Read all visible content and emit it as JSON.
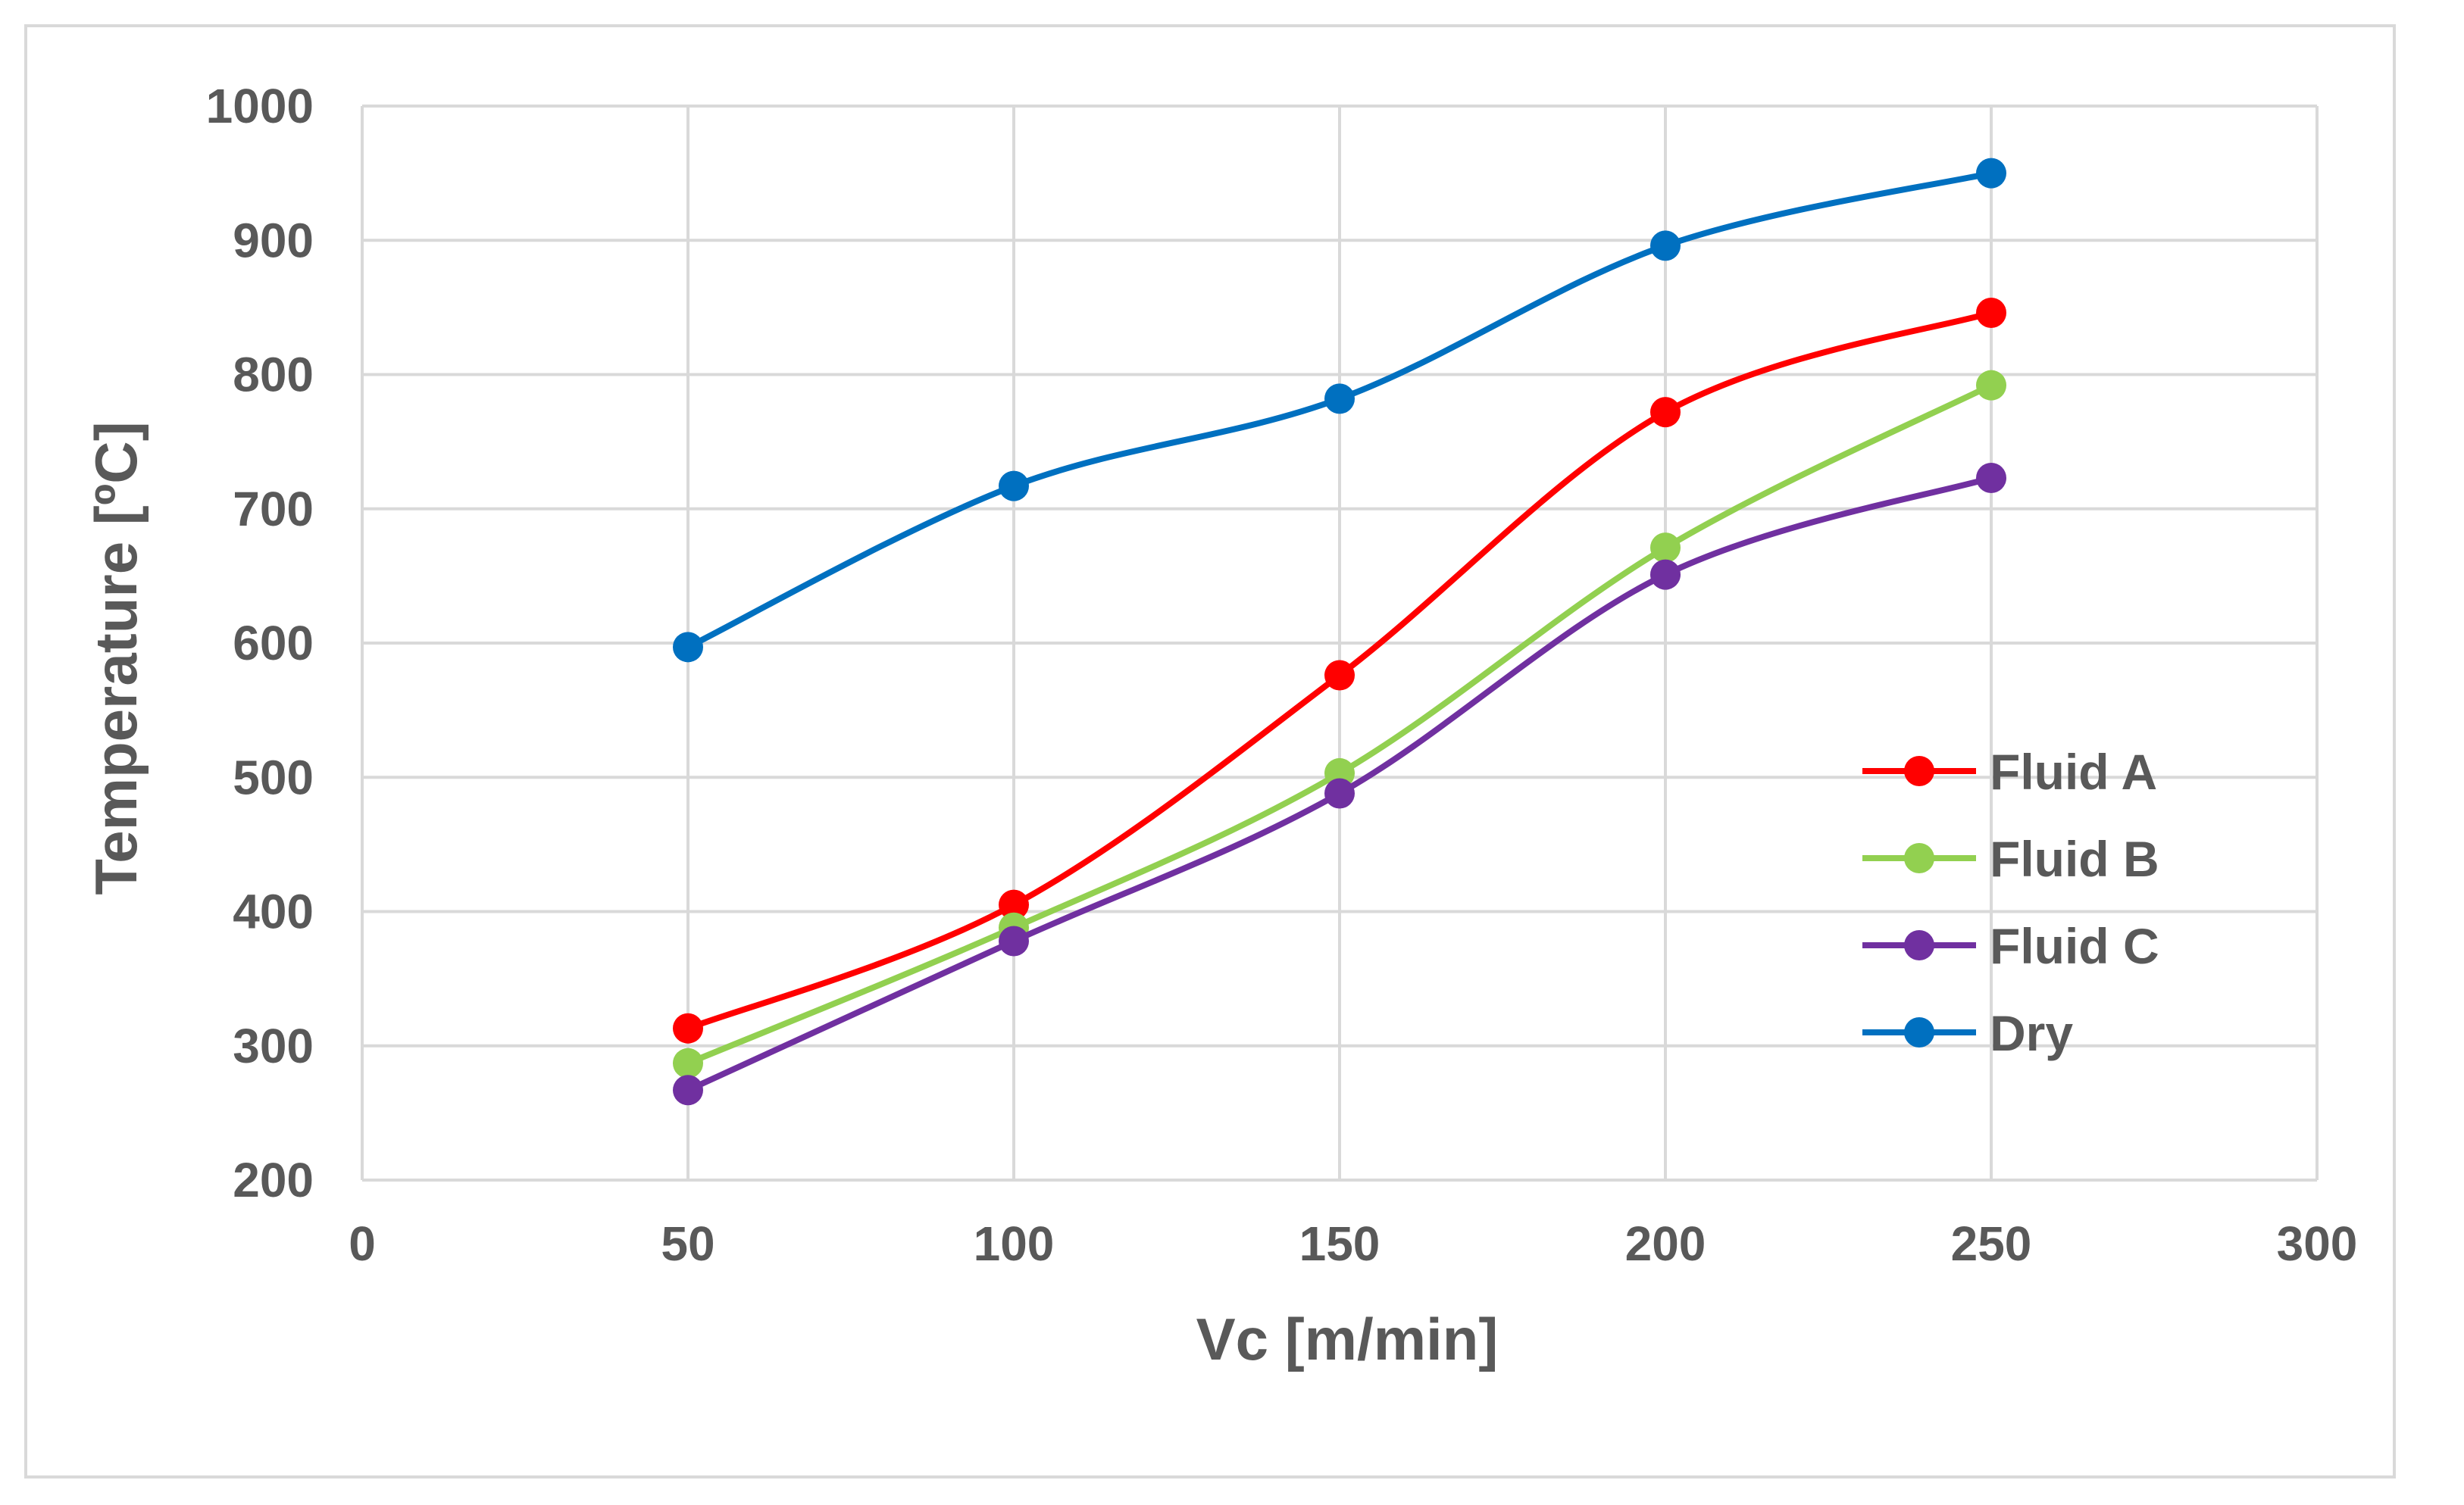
{
  "chart_data": {
    "type": "line",
    "title": "",
    "xlabel": "Vc [m/min]",
    "ylabel": "Temperature [ºC]",
    "xlim": [
      0,
      300
    ],
    "ylim": [
      200,
      1000
    ],
    "xticks": [
      0,
      50,
      100,
      150,
      200,
      250,
      300
    ],
    "yticks": [
      200,
      300,
      400,
      500,
      600,
      700,
      800,
      900,
      1000
    ],
    "grid": true,
    "smooth": true,
    "legend_position": "right-middle",
    "x": [
      50,
      100,
      150,
      200,
      250
    ],
    "series": [
      {
        "name": "Fluid A",
        "color": "#ff0000",
        "values": [
          313,
          405,
          576,
          772,
          846
        ]
      },
      {
        "name": "Fluid B",
        "color": "#92d050",
        "values": [
          287,
          388,
          503,
          671,
          792
        ]
      },
      {
        "name": "Fluid C",
        "color": "#7030a0",
        "values": [
          267,
          378,
          488,
          651,
          723
        ]
      },
      {
        "name": "Dry",
        "color": "#0070c0",
        "values": [
          597,
          717,
          782,
          896,
          950
        ]
      }
    ]
  }
}
